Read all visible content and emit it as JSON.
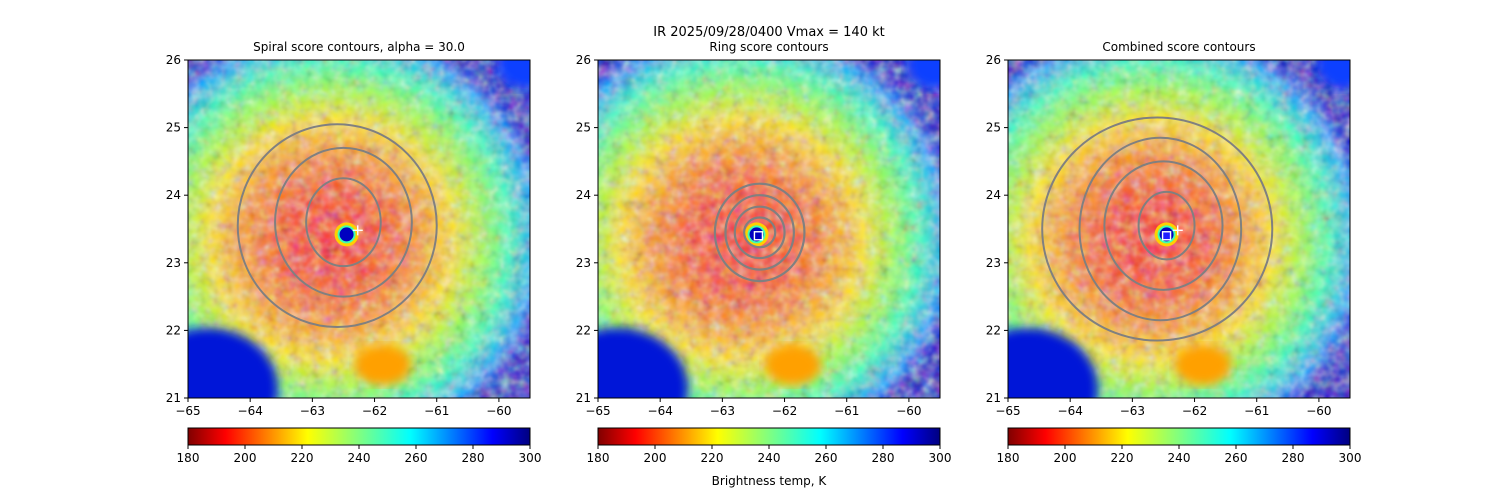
{
  "suptitle": {
    "line1": "IR  2025/09/28/0400    Vmax = 140 kt"
  },
  "colorbar_label": "Brightness temp, K",
  "colors": {
    "contour": "#808080",
    "center_marker": "#ffffff",
    "combined_marker": "#1f1fff"
  },
  "chart_data": [
    {
      "type": "heatmap",
      "title": "Spiral score contours, alpha = 30.0",
      "xlim": [
        -65,
        -59.5
      ],
      "ylim": [
        21,
        26
      ],
      "xticks": [
        -65,
        -64,
        -63,
        -62,
        -61,
        -60
      ],
      "xtick_labels": [
        "−65",
        "−64",
        "−63",
        "−62",
        "−61",
        "−60"
      ],
      "yticks": [
        21,
        22,
        23,
        24,
        25,
        26
      ],
      "ytick_labels": [
        "21",
        "22",
        "23",
        "24",
        "25",
        "26"
      ],
      "eye_center": [
        -62.45,
        23.42
      ],
      "plus_marker": [
        -62.27,
        23.48
      ],
      "contours": [
        {
          "label": "inner",
          "cx": -62.5,
          "cy": 23.6,
          "rx": 0.6,
          "ry": 0.65
        },
        {
          "label": "middle",
          "cx": -62.5,
          "cy": 23.6,
          "rx": 1.1,
          "ry": 1.1
        },
        {
          "label": "outer",
          "cx": -62.6,
          "cy": 23.55,
          "rx": 1.6,
          "ry": 1.5
        }
      ],
      "colorbar": {
        "min": 180,
        "max": 300,
        "ticks": [
          180,
          200,
          220,
          240,
          260,
          280,
          300
        ],
        "cmap": "jet_r"
      }
    },
    {
      "type": "heatmap",
      "title": "Ring score contours",
      "xlim": [
        -65,
        -59.5
      ],
      "ylim": [
        21,
        26
      ],
      "xticks": [
        -65,
        -64,
        -63,
        -62,
        -61,
        -60
      ],
      "xtick_labels": [
        "−65",
        "−64",
        "−63",
        "−62",
        "−61",
        "−60"
      ],
      "yticks": [
        21,
        22,
        23,
        24,
        25,
        26
      ],
      "ytick_labels": [
        "21",
        "22",
        "23",
        "24",
        "25",
        "26"
      ],
      "eye_center": [
        -62.45,
        23.42
      ],
      "square_marker": [
        -62.42,
        23.4
      ],
      "contours": [
        {
          "label": "r1",
          "cx": -62.4,
          "cy": 23.45,
          "rx": 0.25,
          "ry": 0.22
        },
        {
          "label": "r2",
          "cx": -62.4,
          "cy": 23.45,
          "rx": 0.4,
          "ry": 0.38
        },
        {
          "label": "r3",
          "cx": -62.4,
          "cy": 23.45,
          "rx": 0.55,
          "ry": 0.55
        },
        {
          "label": "r4",
          "cx": -62.4,
          "cy": 23.45,
          "rx": 0.72,
          "ry": 0.72
        }
      ],
      "colorbar": {
        "min": 180,
        "max": 300,
        "ticks": [
          180,
          200,
          220,
          240,
          260,
          280,
          300
        ],
        "cmap": "jet_r"
      }
    },
    {
      "type": "heatmap",
      "title": "Combined score contours",
      "xlim": [
        -65,
        -59.5
      ],
      "ylim": [
        21,
        26
      ],
      "xticks": [
        -65,
        -64,
        -63,
        -62,
        -61,
        -60
      ],
      "xtick_labels": [
        "−65",
        "−64",
        "−63",
        "−62",
        "−61",
        "−60"
      ],
      "yticks": [
        21,
        22,
        23,
        24,
        25,
        26
      ],
      "ytick_labels": [
        "21",
        "22",
        "23",
        "24",
        "25",
        "26"
      ],
      "eye_center": [
        -62.45,
        23.42
      ],
      "plus_marker": [
        -62.27,
        23.48
      ],
      "square_marker": [
        -62.45,
        23.4
      ],
      "contours": [
        {
          "label": "inner",
          "cx": -62.45,
          "cy": 23.55,
          "rx": 0.45,
          "ry": 0.5
        },
        {
          "label": "c2",
          "cx": -62.5,
          "cy": 23.55,
          "rx": 0.95,
          "ry": 0.95
        },
        {
          "label": "c3",
          "cx": -62.55,
          "cy": 23.5,
          "rx": 1.3,
          "ry": 1.35
        },
        {
          "label": "outer",
          "cx": -62.6,
          "cy": 23.5,
          "rx": 1.85,
          "ry": 1.65
        }
      ],
      "colorbar": {
        "min": 180,
        "max": 300,
        "ticks": [
          180,
          200,
          220,
          240,
          260,
          280,
          300
        ],
        "cmap": "jet_r"
      }
    }
  ]
}
